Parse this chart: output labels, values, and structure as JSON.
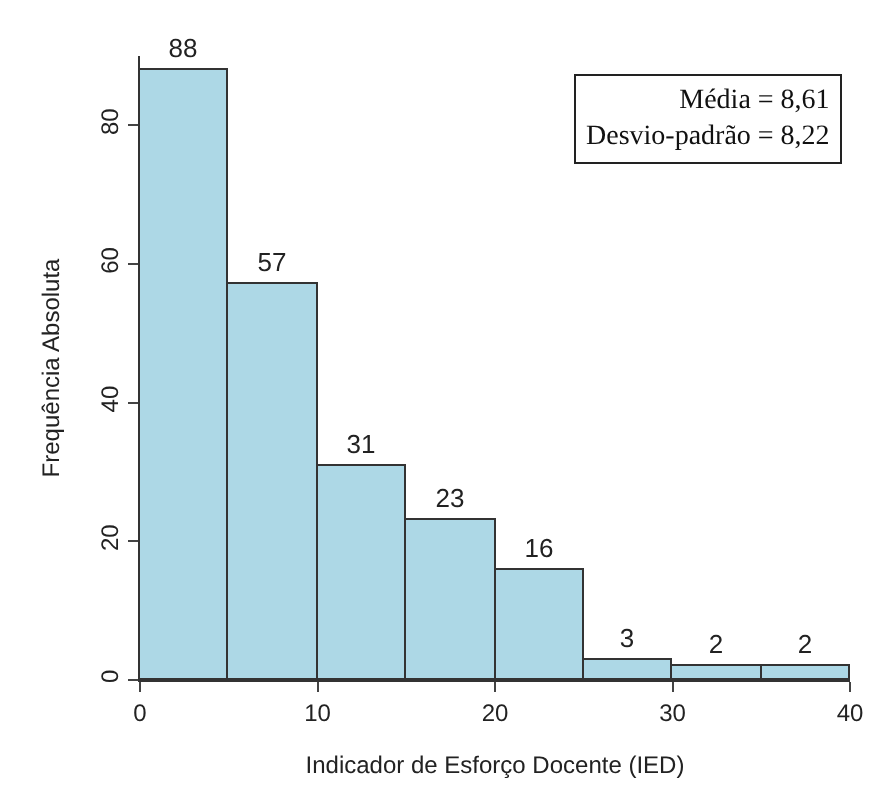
{
  "chart_data": {
    "type": "histogram",
    "xlabel": "Indicador de Esforço Docente (IED)",
    "ylabel": "Frequência Absoluta",
    "bins": [
      0,
      5,
      10,
      15,
      20,
      25,
      30,
      35,
      40
    ],
    "values": [
      88,
      57,
      31,
      23,
      16,
      3,
      2,
      2
    ],
    "color": "#add8e6",
    "xlim": [
      0,
      40
    ],
    "xticks": [
      0,
      10,
      20,
      30,
      40
    ],
    "ylim": [
      0,
      90
    ],
    "yticks": [
      0,
      20,
      40,
      60,
      80
    ],
    "data_labels": true,
    "annotations": [
      "Média = 8,61",
      "Desvio-padrão = 8,22"
    ]
  }
}
